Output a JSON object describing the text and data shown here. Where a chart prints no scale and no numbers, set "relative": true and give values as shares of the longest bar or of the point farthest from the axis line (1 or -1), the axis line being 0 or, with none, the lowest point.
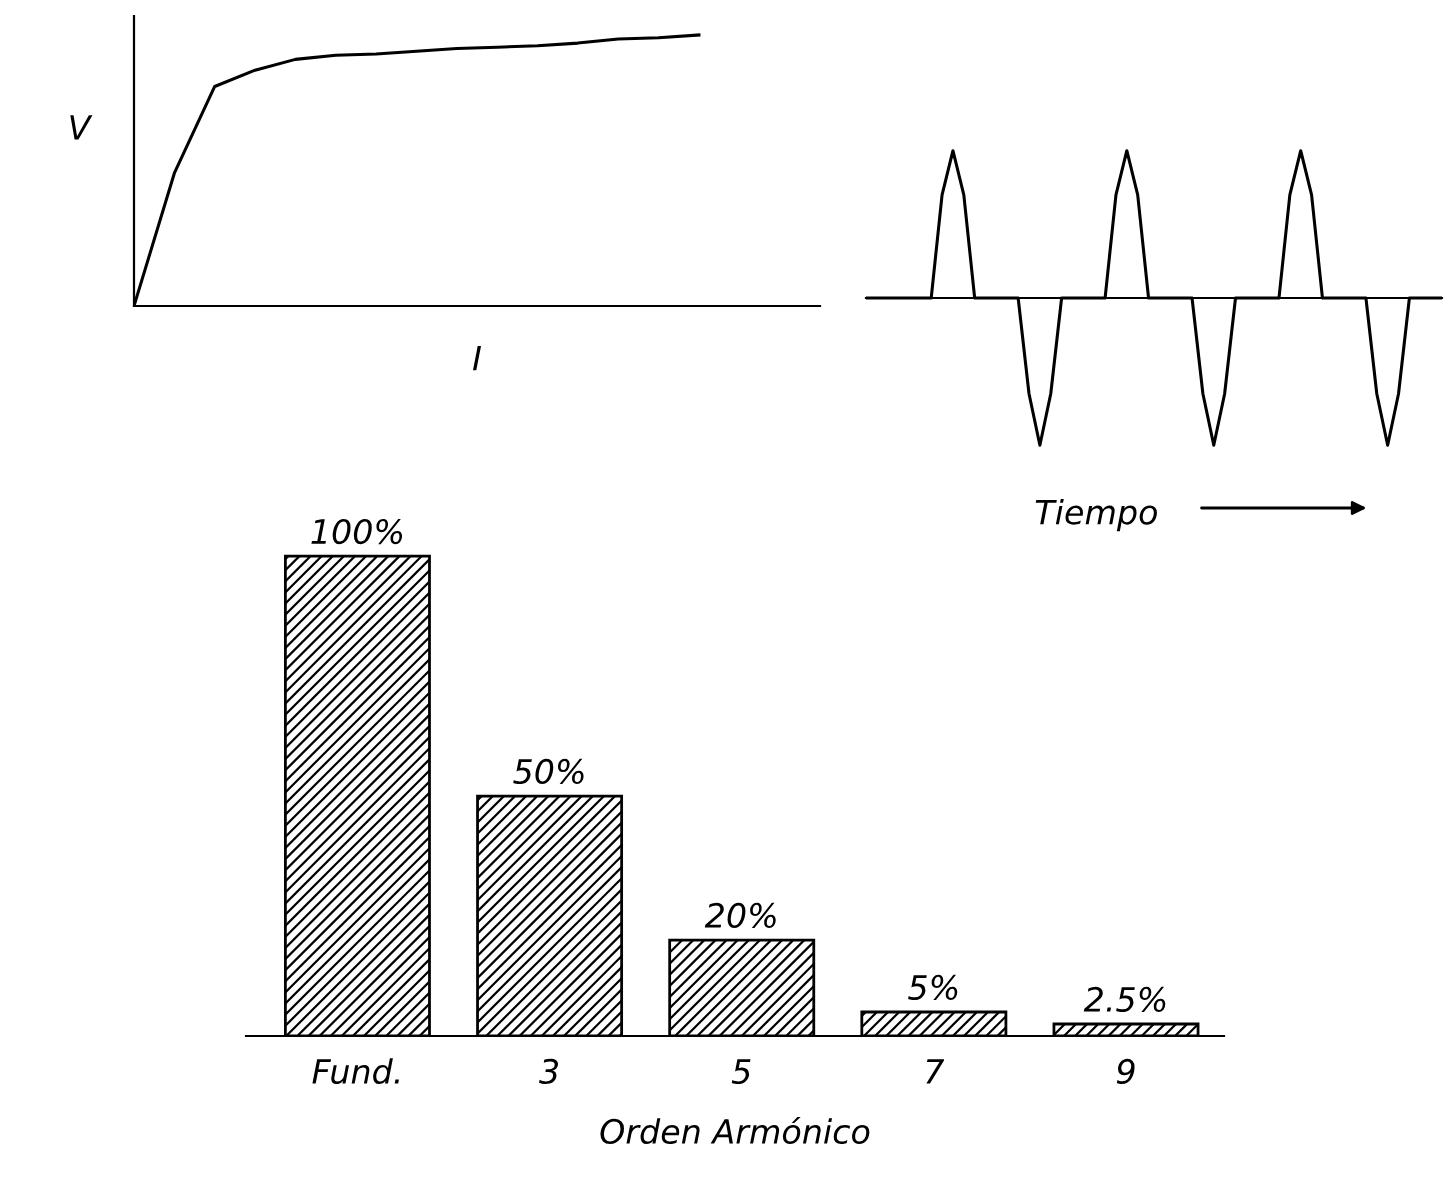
{
  "chart_data": [
    {
      "type": "line",
      "relative": true,
      "xlabel": "I",
      "ylabel": "V",
      "categories": [
        null,
        null,
        null,
        null,
        null,
        null,
        null,
        null,
        null,
        null,
        null,
        null,
        null,
        null,
        null,
        null,
        null,
        null
      ],
      "series": [
        {
          "color": "#000000",
          "values": [
            0,
            0.49,
            0.81,
            0.87,
            0.91,
            0.925,
            0.93,
            0.94,
            0.95,
            0.955,
            0.96,
            0.97,
            0.985,
            0.99,
            1.0,
            null,
            null,
            null
          ]
        }
      ],
      "marker": "none",
      "line_style": "solid"
    },
    {
      "type": "line",
      "relative": true,
      "xlabel": "Tiempo",
      "categories": [
        null,
        null,
        null,
        null,
        null,
        null,
        null,
        null,
        null,
        null,
        null,
        null,
        null,
        null,
        null,
        null,
        null,
        null,
        null,
        null,
        null,
        null,
        null,
        null,
        null,
        null,
        null,
        null,
        null,
        null,
        null,
        null,
        null,
        null,
        null,
        null,
        null,
        null,
        null,
        null,
        null,
        null,
        null,
        null,
        null,
        null,
        null,
        null,
        null,
        null,
        null,
        null,
        null,
        null
      ],
      "series": [
        {
          "color": "#000000",
          "values": [
            0,
            0,
            0,
            0,
            0,
            0,
            0,
            0.7,
            1,
            0.7,
            0,
            0,
            0,
            0,
            0,
            -0.65,
            -1,
            -0.65,
            0,
            0,
            0,
            0,
            0,
            0.7,
            1,
            0.7,
            0,
            0,
            0,
            0,
            0,
            -0.65,
            -1,
            -0.65,
            0,
            0,
            0,
            0,
            0,
            0.7,
            1,
            0.7,
            0,
            0,
            0,
            0,
            0,
            -0.65,
            -1,
            -0.65,
            0,
            0,
            0,
            0
          ]
        }
      ],
      "marker": "none",
      "line_style": "solid"
    },
    {
      "type": "bar",
      "xlabel": "Orden Armónico",
      "categories": [
        "Fund.",
        "3",
        "5",
        "7",
        "9"
      ],
      "values": [
        100,
        50,
        20,
        5,
        2.5
      ],
      "value_labels": [
        "100%",
        "50%",
        "20%",
        "5%",
        "2.5%"
      ],
      "color": "#000000"
    }
  ]
}
